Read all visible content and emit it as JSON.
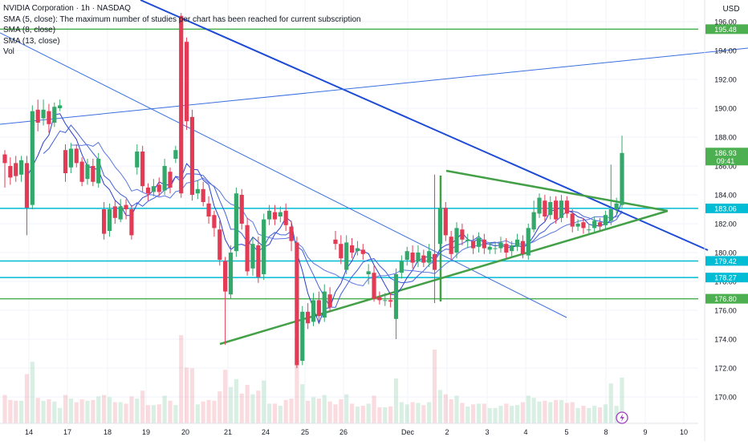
{
  "header": {
    "title": "NVIDIA Corporation · 1h · NASDAQ",
    "studies": [
      "SMA (5, close): The maximum number of studies per chart has been reached for current subscription",
      "SMA (8, close)",
      "SMA (13, close)",
      "Vol"
    ]
  },
  "chart_data": {
    "type": "candlestick",
    "title": "NVIDIA Corporation · 1h · NASDAQ",
    "currency": "USD",
    "y_ticks": [
      170,
      172,
      174,
      176,
      178,
      180,
      182,
      184,
      186,
      188,
      190,
      192,
      194,
      196
    ],
    "ylim": [
      168.3,
      196.9
    ],
    "x_ticks": [
      "14",
      "17",
      "18",
      "19",
      "20",
      "21",
      "24",
      "25",
      "26",
      "Dec",
      "2",
      "3",
      "4",
      "5",
      "8",
      "9",
      "10"
    ],
    "price_tags": [
      {
        "label": "195.48",
        "value": 195.48,
        "color": "#4caf50"
      },
      {
        "label": "186.93",
        "value": 186.93,
        "color": "#4caf50",
        "sub": "09:41"
      },
      {
        "label": "183.06",
        "value": 183.06,
        "color": "#00bcd4"
      },
      {
        "label": "179.42",
        "value": 179.42,
        "color": "#00bcd4"
      },
      {
        "label": "178.27",
        "value": 178.27,
        "color": "#00bcd4"
      },
      {
        "label": "176.80",
        "value": 176.8,
        "color": "#4caf50"
      }
    ],
    "horizontal_levels": [
      {
        "value": 195.48,
        "color": "#4caf50"
      },
      {
        "value": 183.06,
        "color": "#00bcd4"
      },
      {
        "value": 179.42,
        "color": "#00bcd4"
      },
      {
        "value": 178.27,
        "color": "#00bcd4"
      },
      {
        "value": 176.8,
        "color": "#4caf50"
      }
    ],
    "candles": [
      [
        186.8,
        186.2,
        187.1,
        184.5
      ],
      [
        186.0,
        185.2,
        186.6,
        184.7
      ],
      [
        186.2,
        185.3,
        186.7,
        184.9
      ],
      [
        185.4,
        186.4,
        186.7,
        184.9
      ],
      [
        186.2,
        183.1,
        186.7,
        181.2
      ],
      [
        183.3,
        189.8,
        190.2,
        183.0
      ],
      [
        189.9,
        189.0,
        190.6,
        188.4
      ],
      [
        189.3,
        189.9,
        190.6,
        188.8
      ],
      [
        189.8,
        188.9,
        190.3,
        188.3
      ],
      [
        189.0,
        190.1,
        190.4,
        188.7
      ],
      [
        190.0,
        190.2,
        190.6,
        189.8
      ],
      [
        187.1,
        185.5,
        187.5,
        184.9
      ],
      [
        185.9,
        187.2,
        187.6,
        185.5
      ],
      [
        187.2,
        186.2,
        187.5,
        185.9
      ],
      [
        186.3,
        184.9,
        186.6,
        184.6
      ],
      [
        185.1,
        186.1,
        186.5,
        184.7
      ],
      [
        186.0,
        184.9,
        186.5,
        184.6
      ],
      [
        184.8,
        186.5,
        186.9,
        184.5
      ],
      [
        183.0,
        181.3,
        183.5,
        180.9
      ],
      [
        181.5,
        183.0,
        183.4,
        181.1
      ],
      [
        183.2,
        182.4,
        183.6,
        182.0
      ],
      [
        182.3,
        183.2,
        183.7,
        182.1
      ],
      [
        183.3,
        183.0,
        183.7,
        182.3
      ],
      [
        183.0,
        181.2,
        183.3,
        180.9
      ],
      [
        185.9,
        187.0,
        187.5,
        185.4
      ],
      [
        187.0,
        184.6,
        187.4,
        184.2
      ],
      [
        184.5,
        184.1,
        184.8,
        183.6
      ],
      [
        184.2,
        184.6,
        185.1,
        183.9
      ],
      [
        184.7,
        184.2,
        185.2,
        183.9
      ],
      [
        184.3,
        186.0,
        186.5,
        184.0
      ],
      [
        185.6,
        184.5,
        185.9,
        184.1
      ],
      [
        186.5,
        187.1,
        187.4,
        186.2
      ],
      [
        196.4,
        184.1,
        196.6,
        183.8
      ],
      [
        194.6,
        189.1,
        194.9,
        188.5
      ],
      [
        189.4,
        184.0,
        189.9,
        183.6
      ],
      [
        184.1,
        184.4,
        185.0,
        183.7
      ],
      [
        184.4,
        183.5,
        184.9,
        183.2
      ],
      [
        183.4,
        182.5,
        183.9,
        182.0
      ],
      [
        182.6,
        181.7,
        182.9,
        181.1
      ],
      [
        181.6,
        179.5,
        182.2,
        179.1
      ],
      [
        179.4,
        177.3,
        179.7,
        173.6
      ],
      [
        177.1,
        180.0,
        180.5,
        176.8
      ],
      [
        180.1,
        184.1,
        184.5,
        179.7
      ],
      [
        184.0,
        182.0,
        184.4,
        181.6
      ],
      [
        181.9,
        178.7,
        182.4,
        178.4
      ],
      [
        178.9,
        180.6,
        181.1,
        178.4
      ],
      [
        180.5,
        178.3,
        181.1,
        177.9
      ],
      [
        178.5,
        182.3,
        182.7,
        178.1
      ],
      [
        182.3,
        182.9,
        183.3,
        181.9
      ],
      [
        182.8,
        182.3,
        183.3,
        181.9
      ],
      [
        182.5,
        182.8,
        183.2,
        182.1
      ],
      [
        182.9,
        181.9,
        183.4,
        181.5
      ],
      [
        181.8,
        180.8,
        182.2,
        180.1
      ],
      [
        180.7,
        172.2,
        181.1,
        172.0
      ],
      [
        172.5,
        175.9,
        176.3,
        172.2
      ],
      [
        175.9,
        175.1,
        176.5,
        174.7
      ],
      [
        175.2,
        176.7,
        177.2,
        174.9
      ],
      [
        176.7,
        175.6,
        177.3,
        175.2
      ],
      [
        175.5,
        177.3,
        177.8,
        175.2
      ],
      [
        177.1,
        176.2,
        177.6,
        175.9
      ],
      [
        180.9,
        180.6,
        181.5,
        180.2
      ],
      [
        180.6,
        179.6,
        181.2,
        179.2
      ],
      [
        178.8,
        180.7,
        181.2,
        178.5
      ],
      [
        180.5,
        180.0,
        181.0,
        179.6
      ],
      [
        180.1,
        180.3,
        180.8,
        179.8
      ],
      [
        180.2,
        179.9,
        180.6,
        179.5
      ],
      [
        178.5,
        178.7,
        179.2,
        177.8
      ],
      [
        178.6,
        176.8,
        179.1,
        176.6
      ],
      [
        176.9,
        176.7,
        177.3,
        176.4
      ],
      [
        176.7,
        176.7,
        177.2,
        176.3
      ],
      [
        176.7,
        176.6,
        177.2,
        176.2
      ],
      [
        175.4,
        178.5,
        178.9,
        174.0
      ],
      [
        178.6,
        179.4,
        179.8,
        178.2
      ],
      [
        179.5,
        180.1,
        180.4,
        179.1
      ],
      [
        180.0,
        179.3,
        180.5,
        178.9
      ],
      [
        179.4,
        180.0,
        180.5,
        179.0
      ],
      [
        179.8,
        179.3,
        180.2,
        179.0
      ],
      [
        179.3,
        180.1,
        180.6,
        179.0
      ],
      [
        179.9,
        178.8,
        185.4,
        176.5
      ],
      [
        180.6,
        183.1,
        183.5,
        180.2
      ],
      [
        183.1,
        181.2,
        183.5,
        180.8
      ],
      [
        181.1,
        179.9,
        181.5,
        179.5
      ],
      [
        180.0,
        181.7,
        182.1,
        179.6
      ],
      [
        181.6,
        180.9,
        182.0,
        180.5
      ],
      [
        180.8,
        180.9,
        181.3,
        180.3
      ],
      [
        180.8,
        180.3,
        181.2,
        179.9
      ],
      [
        180.4,
        181.0,
        181.4,
        180.0
      ],
      [
        180.9,
        180.3,
        181.3,
        179.9
      ],
      [
        180.2,
        180.4,
        180.7,
        179.9
      ],
      [
        180.3,
        180.3,
        180.7,
        179.9
      ],
      [
        180.3,
        180.7,
        181.1,
        180.0
      ],
      [
        180.6,
        180.0,
        181.0,
        179.6
      ],
      [
        180.1,
        180.5,
        180.8,
        179.7
      ],
      [
        180.4,
        180.9,
        181.3,
        180.1
      ],
      [
        180.8,
        179.9,
        181.2,
        179.6
      ],
      [
        179.8,
        181.7,
        182.0,
        179.5
      ],
      [
        181.6,
        182.8,
        183.6,
        181.4
      ],
      [
        182.7,
        183.8,
        184.1,
        182.4
      ],
      [
        183.6,
        182.5,
        184.0,
        182.2
      ],
      [
        182.6,
        183.5,
        183.9,
        182.3
      ],
      [
        183.6,
        182.3,
        183.9,
        182.0
      ],
      [
        182.4,
        183.6,
        184.0,
        182.1
      ],
      [
        183.6,
        182.7,
        183.9,
        182.4
      ],
      [
        182.7,
        181.8,
        183.0,
        181.4
      ],
      [
        181.8,
        182.0,
        182.3,
        181.5
      ],
      [
        182.1,
        181.7,
        182.4,
        181.3
      ],
      [
        181.6,
        181.6,
        182.0,
        181.2
      ],
      [
        181.7,
        182.2,
        182.5,
        181.4
      ],
      [
        182.1,
        181.8,
        182.4,
        181.5
      ],
      [
        181.9,
        182.6,
        182.9,
        181.6
      ],
      [
        182.2,
        183.0,
        186.1,
        181.9
      ],
      [
        183.0,
        183.4,
        183.8,
        182.7
      ],
      [
        183.3,
        186.9,
        188.1,
        183.1
      ]
    ]
  }
}
